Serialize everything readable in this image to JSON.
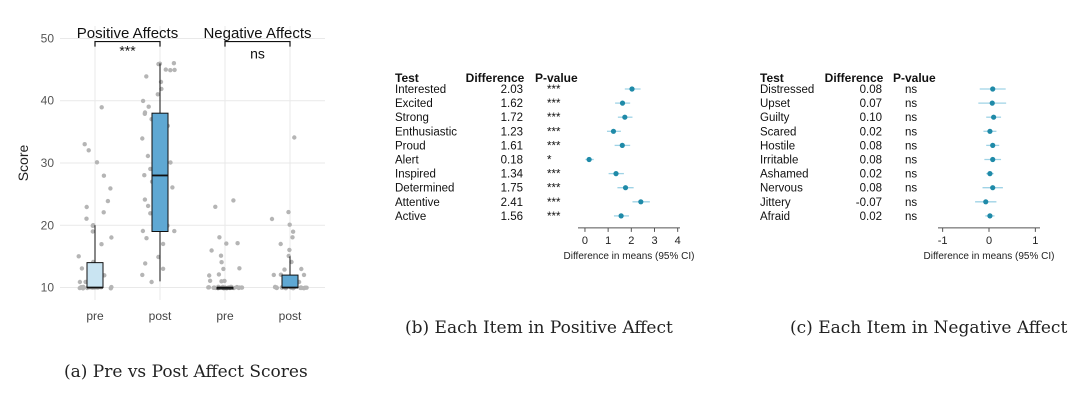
{
  "captions": {
    "a": "(a) Pre vs Post Affect Scores",
    "b": "(b) Each Item in Positive Affect",
    "c": "(c) Each Item in Negative Affect"
  },
  "colors": {
    "pre_box": "#c9e4f2",
    "post_box": "#5fa8d3",
    "point": "#b5b5b5",
    "forest_point": "#1f8aa8",
    "forest_ci": "#9fd3e6",
    "grid": "#e9e9e9"
  },
  "chart_data": [
    {
      "type": "box",
      "ylabel": "Score",
      "ylim": [
        8,
        52
      ],
      "yticks": [
        10,
        20,
        30,
        40,
        50
      ],
      "categories": [
        "pre",
        "post",
        "pre",
        "post"
      ],
      "panels": [
        {
          "title": "Positive Affects",
          "significance": "***"
        },
        {
          "title": "Negative Affects",
          "significance": "ns"
        }
      ],
      "boxes": [
        {
          "min": 10,
          "q1": 10,
          "median": 10,
          "q3": 14,
          "max": 20
        },
        {
          "min": 11,
          "q1": 19,
          "median": 28,
          "q3": 38,
          "max": 46
        },
        {
          "min": 10,
          "q1": 10,
          "median": 10,
          "q3": 10,
          "max": 10
        },
        {
          "min": 10,
          "q1": 10,
          "median": 10,
          "q3": 12,
          "max": 15
        }
      ],
      "points": [
        [
          10,
          10,
          10,
          10,
          10,
          10,
          10,
          10,
          10,
          10,
          10,
          10,
          10,
          10,
          10,
          10,
          10,
          10,
          10,
          10,
          10,
          11,
          11,
          11,
          12,
          12,
          13,
          14,
          15,
          17,
          18,
          19,
          20,
          20,
          21,
          22,
          23,
          24,
          26,
          28,
          30,
          32,
          33,
          39
        ],
        [
          11,
          12,
          13,
          14,
          15,
          17,
          18,
          19,
          19,
          20,
          21,
          22,
          23,
          24,
          25,
          26,
          27,
          27,
          28,
          29,
          30,
          31,
          31,
          32,
          33,
          34,
          35,
          35,
          36,
          37,
          38,
          38,
          39,
          40,
          41,
          42,
          43,
          44,
          45,
          45,
          46,
          46,
          46,
          45
        ],
        [
          10,
          10,
          10,
          10,
          10,
          10,
          10,
          10,
          10,
          10,
          10,
          10,
          10,
          10,
          10,
          10,
          10,
          10,
          10,
          10,
          10,
          10,
          10,
          11,
          11,
          11,
          12,
          12,
          13,
          13,
          14,
          15,
          16,
          17,
          17,
          18,
          24,
          23
        ],
        [
          10,
          10,
          10,
          10,
          10,
          10,
          10,
          10,
          10,
          10,
          10,
          10,
          10,
          10,
          10,
          10,
          10,
          10,
          10,
          10,
          11,
          11,
          11,
          11,
          12,
          12,
          12,
          13,
          13,
          14,
          15,
          16,
          17,
          18,
          19,
          20,
          21,
          22,
          34
        ]
      ]
    },
    {
      "type": "forest",
      "headers": [
        "Test",
        "Difference",
        "P-value"
      ],
      "xlabel": "Difference in means (95% CI)",
      "xlim": [
        -0.3,
        4.1
      ],
      "xticks": [
        0,
        1,
        2,
        3,
        4
      ],
      "rows": [
        {
          "test": "Interested",
          "difference": "2.03",
          "p": "***",
          "value": 2.03,
          "low": 1.72,
          "high": 2.4
        },
        {
          "test": "Excited",
          "difference": "1.62",
          "p": "***",
          "value": 1.62,
          "low": 1.3,
          "high": 1.95
        },
        {
          "test": "Strong",
          "difference": "1.72",
          "p": "***",
          "value": 1.72,
          "low": 1.42,
          "high": 2.05
        },
        {
          "test": "Enthusiastic",
          "difference": "1.23",
          "p": "***",
          "value": 1.23,
          "low": 0.95,
          "high": 1.55
        },
        {
          "test": "Proud",
          "difference": "1.61",
          "p": "***",
          "value": 1.61,
          "low": 1.28,
          "high": 1.95
        },
        {
          "test": "Alert",
          "difference": "0.18",
          "p": "*",
          "value": 0.18,
          "low": 0.02,
          "high": 0.38
        },
        {
          "test": "Inspired",
          "difference": "1.34",
          "p": "***",
          "value": 1.34,
          "low": 1.02,
          "high": 1.68
        },
        {
          "test": "Determined",
          "difference": "1.75",
          "p": "***",
          "value": 1.75,
          "low": 1.4,
          "high": 2.1
        },
        {
          "test": "Attentive",
          "difference": "2.41",
          "p": "***",
          "value": 2.41,
          "low": 2.05,
          "high": 2.8
        },
        {
          "test": "Active",
          "difference": "1.56",
          "p": "***",
          "value": 1.56,
          "low": 1.25,
          "high": 1.9
        }
      ]
    },
    {
      "type": "forest",
      "headers": [
        "Test",
        "Difference",
        "P-value"
      ],
      "xlabel": "Difference in means (95% CI)",
      "xlim": [
        -1.1,
        1.1
      ],
      "xticks": [
        -1,
        0,
        1
      ],
      "rows": [
        {
          "test": "Distressed",
          "difference": "0.08",
          "p": "ns",
          "value": 0.08,
          "low": -0.2,
          "high": 0.36
        },
        {
          "test": "Upset",
          "difference": "0.07",
          "p": "ns",
          "value": 0.07,
          "low": -0.23,
          "high": 0.37
        },
        {
          "test": "Guilty",
          "difference": "0.10",
          "p": "ns",
          "value": 0.1,
          "low": -0.06,
          "high": 0.26
        },
        {
          "test": "Scared",
          "difference": "0.02",
          "p": "ns",
          "value": 0.02,
          "low": -0.12,
          "high": 0.16
        },
        {
          "test": "Hostile",
          "difference": "0.08",
          "p": "ns",
          "value": 0.08,
          "low": -0.06,
          "high": 0.22
        },
        {
          "test": "Irritable",
          "difference": "0.08",
          "p": "ns",
          "value": 0.08,
          "low": -0.1,
          "high": 0.26
        },
        {
          "test": "Ashamed",
          "difference": "0.02",
          "p": "ns",
          "value": 0.02,
          "low": -0.06,
          "high": 0.1
        },
        {
          "test": "Nervous",
          "difference": "0.08",
          "p": "ns",
          "value": 0.08,
          "low": -0.14,
          "high": 0.3
        },
        {
          "test": "Jittery",
          "difference": "-0.07",
          "p": "ns",
          "value": -0.07,
          "low": -0.3,
          "high": 0.16
        },
        {
          "test": "Afraid",
          "difference": "0.02",
          "p": "ns",
          "value": 0.02,
          "low": -0.08,
          "high": 0.12
        }
      ]
    }
  ]
}
